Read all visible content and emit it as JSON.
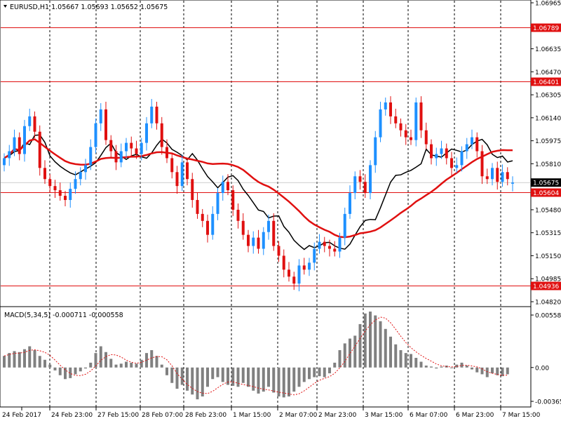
{
  "header": {
    "symbol_line": "EURUSD,H1  1.05667 1.05693 1.05652 1.05675"
  },
  "colors": {
    "bull": "#1e90ff",
    "bear": "#e01010",
    "ma_fast": "#e01010",
    "ma_slow": "#000000",
    "level_line": "#e01010",
    "grid": "#000000",
    "histogram": "#808080",
    "signal": "#e01010",
    "current_tag": "#000000",
    "level_tag": "#e01010"
  },
  "price_axis": {
    "ticks": [
      "1.06965",
      "1.06635",
      "1.06470",
      "1.06305",
      "1.06140",
      "1.05975",
      "1.05810",
      "1.05480",
      "1.05315",
      "1.05150",
      "1.04985",
      "1.04820"
    ],
    "current_price": "1.05675",
    "min": 1.0482,
    "max": 1.06965
  },
  "levels": [
    {
      "name": "level-1-06789",
      "value": 1.06789,
      "label": "1.06789"
    },
    {
      "name": "level-1-06401",
      "value": 1.06401,
      "label": "1.06401"
    },
    {
      "name": "level-1-05604",
      "value": 1.05604,
      "label": "1.05604"
    },
    {
      "name": "level-1-04936",
      "value": 1.04936,
      "label": "1.04936"
    }
  ],
  "time_axis": {
    "labels": [
      "24 Feb 2017",
      "24 Feb 23:00",
      "27 Feb 15:00",
      "28 Feb 07:00",
      "28 Feb 23:00",
      "1 Mar 15:00",
      "2 Mar 07:00",
      "2 Mar 23:00",
      "3 Mar 15:00",
      "6 Mar 07:00",
      "6 Mar 23:00",
      "7 Mar 15:00"
    ]
  },
  "macd": {
    "title": "MACD(5,34,5) -0.000711 -0.000558",
    "ticks": [
      "0.005585",
      "0.00",
      "-0.003654"
    ],
    "max": 0.005585,
    "min": -0.003654
  },
  "chart_data": {
    "type": "candlestick",
    "symbol": "EURUSD",
    "timeframe": "H1",
    "last": {
      "open": 1.05667,
      "high": 1.05693,
      "low": 1.05652,
      "close": 1.05675
    },
    "closes": [
      1.0585,
      1.059,
      1.06,
      1.0588,
      1.0608,
      1.0615,
      1.0604,
      1.0578,
      1.057,
      1.0565,
      1.0562,
      1.0558,
      1.0555,
      1.0563,
      1.057,
      1.0575,
      1.058,
      1.0593,
      1.061,
      1.062,
      1.0598,
      1.059,
      1.0582,
      1.059,
      1.0596,
      1.0592,
      1.0588,
      1.0596,
      1.061,
      1.0622,
      1.061,
      1.0593,
      1.0585,
      1.0575,
      1.0565,
      1.0582,
      1.057,
      1.0555,
      1.0545,
      1.054,
      1.053,
      1.0545,
      1.056,
      1.0568,
      1.0562,
      1.0548,
      1.054,
      1.053,
      1.0522,
      1.0528,
      1.052,
      1.0532,
      1.054,
      1.0522,
      1.0515,
      1.0505,
      1.05,
      1.0495,
      1.0508,
      1.0505,
      1.051,
      1.052,
      1.0525,
      1.0522,
      1.052,
      1.0518,
      1.0528,
      1.0545,
      1.056,
      1.0572,
      1.0568,
      1.056,
      1.058,
      1.06,
      1.062,
      1.0625,
      1.0615,
      1.061,
      1.0605,
      1.06,
      1.0598,
      1.0625,
      1.0605,
      1.0595,
      1.0585,
      1.0588,
      1.0592,
      1.0585,
      1.0578,
      1.058,
      1.059,
      1.0595,
      1.06,
      1.059,
      1.0572,
      1.057,
      1.0578,
      1.0568,
      1.0575,
      1.057,
      1.05675
    ],
    "macd_histogram": [
      0.0012,
      0.0015,
      0.0017,
      0.0016,
      0.0019,
      0.0022,
      0.0018,
      0.0012,
      0.0008,
      0.0003,
      -0.0003,
      -0.0008,
      -0.0012,
      -0.0011,
      -0.0007,
      -0.0004,
      -0.0001,
      0.0005,
      0.0015,
      0.0022,
      0.0016,
      0.0009,
      0.0003,
      0.0004,
      0.0006,
      0.0005,
      0.0004,
      0.0008,
      0.0015,
      0.0018,
      0.0012,
      0.0003,
      -0.0008,
      -0.0016,
      -0.0022,
      -0.0018,
      -0.0024,
      -0.0028,
      -0.0033,
      -0.003,
      -0.002,
      -0.0012,
      -0.001,
      -0.0015,
      -0.0018,
      -0.0019,
      -0.002,
      -0.0016,
      -0.002,
      -0.0024,
      -0.0027,
      -0.0025,
      -0.002,
      -0.0026,
      -0.003,
      -0.0031,
      -0.003,
      -0.0025,
      -0.002,
      -0.0015,
      -0.0012,
      -0.001,
      -0.0009,
      -0.001,
      -0.0006,
      0.0005,
      0.0018,
      0.0025,
      0.003,
      0.0033,
      0.0045,
      0.0056,
      0.0058,
      0.0054,
      0.0048,
      0.004,
      0.0032,
      0.0024,
      0.0018,
      0.0015,
      0.0014,
      0.001,
      0.0006,
      0.0002,
      0.0001,
      -0.0001,
      0.0001,
      0.0002,
      0.0,
      0.0003,
      0.0005,
      0.0002,
      -0.0002,
      -0.0005,
      -0.0007,
      -0.001,
      -0.0006,
      -0.0008,
      -0.0009,
      -0.0007
    ]
  }
}
